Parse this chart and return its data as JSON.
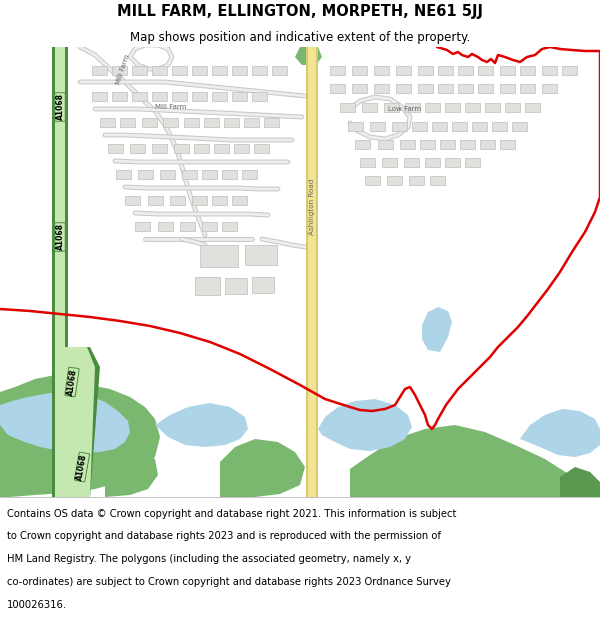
{
  "title": "MILL FARM, ELLINGTON, MORPETH, NE61 5JJ",
  "subtitle": "Map shows position and indicative extent of the property.",
  "footer_lines": [
    "Contains OS data © Crown copyright and database right 2021. This information is subject",
    "to Crown copyright and database rights 2023 and is reproduced with the permission of",
    "HM Land Registry. The polygons (including the associated geometry, namely x, y",
    "co-ordinates) are subject to Crown copyright and database rights 2023 Ordnance Survey",
    "100026316."
  ],
  "map_bg": "#f7f6f3",
  "road_yellow": "#f2e492",
  "road_yellow_border": "#d4c870",
  "road_green_light": "#c5e8b0",
  "road_green_dark": "#4a8c3f",
  "water_blue": "#aed4e8",
  "veg_green": "#7ab870",
  "veg_dark": "#5a9850",
  "building_fill": "#e0e0dc",
  "building_stroke": "#bebebe",
  "boundary_red": "#e00000",
  "title_fontsize": 10.5,
  "subtitle_fontsize": 8.5,
  "footer_fontsize": 7.2,
  "label_color": "#666666"
}
